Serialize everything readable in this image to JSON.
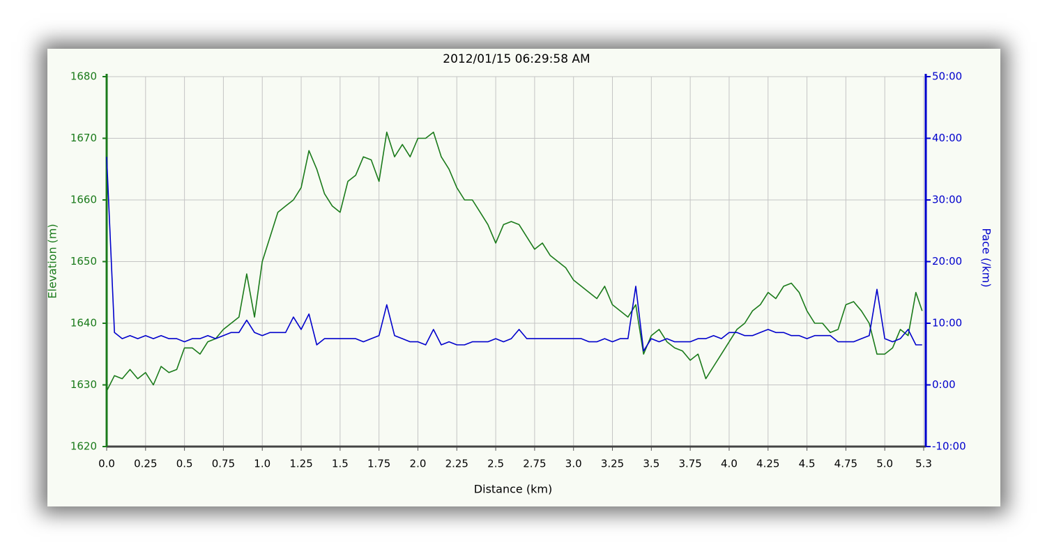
{
  "chart_data": {
    "type": "line",
    "title": "2012/01/15 06:29:58 AM",
    "x_label": "Distance (km)",
    "y_label": "Elevation (m)",
    "y2_label": "Pace (/km)",
    "grid": true,
    "x": [
      0,
      0.05,
      0.1,
      0.15,
      0.2,
      0.25,
      0.3,
      0.35,
      0.4,
      0.45,
      0.5,
      0.55,
      0.6,
      0.65,
      0.7,
      0.75,
      0.8,
      0.85,
      0.9,
      0.95,
      1.0,
      1.05,
      1.1,
      1.15,
      1.2,
      1.25,
      1.3,
      1.35,
      1.4,
      1.45,
      1.5,
      1.55,
      1.6,
      1.65,
      1.7,
      1.75,
      1.8,
      1.85,
      1.9,
      1.95,
      2.0,
      2.05,
      2.1,
      2.15,
      2.2,
      2.25,
      2.3,
      2.35,
      2.4,
      2.45,
      2.5,
      2.55,
      2.6,
      2.65,
      2.7,
      2.75,
      2.8,
      2.85,
      2.9,
      2.95,
      3.0,
      3.05,
      3.1,
      3.15,
      3.2,
      3.25,
      3.3,
      3.35,
      3.4,
      3.45,
      3.5,
      3.55,
      3.6,
      3.65,
      3.7,
      3.75,
      3.8,
      3.85,
      3.9,
      3.95,
      4.0,
      4.05,
      4.1,
      4.15,
      4.2,
      4.25,
      4.3,
      4.35,
      4.4,
      4.45,
      4.5,
      4.55,
      4.6,
      4.65,
      4.7,
      4.75,
      4.8,
      4.85,
      4.9,
      4.95,
      5.0,
      5.05,
      5.1,
      5.15,
      5.2,
      5.24
    ],
    "series": [
      {
        "name": "Elevation",
        "color": "#1a7a1a",
        "axis": "y",
        "values": [
          1629,
          1631.5,
          1631,
          1632.5,
          1631,
          1632,
          1630,
          1633,
          1632,
          1632.5,
          1636,
          1636,
          1635,
          1637,
          1637.5,
          1639,
          1640,
          1641,
          1648,
          1641,
          1650,
          1654,
          1658,
          1659,
          1660,
          1662,
          1668,
          1665,
          1661,
          1659,
          1658,
          1663,
          1664,
          1667,
          1666.5,
          1663,
          1671,
          1667,
          1669,
          1667,
          1670,
          1670,
          1671,
          1667,
          1665,
          1662,
          1660,
          1660,
          1658,
          1656,
          1653,
          1656,
          1656.5,
          1656,
          1654,
          1652,
          1653,
          1651,
          1650,
          1649,
          1647,
          1646,
          1645,
          1644,
          1646,
          1643,
          1642,
          1641,
          1643,
          1635,
          1638,
          1639,
          1637,
          1636,
          1635.5,
          1634,
          1635,
          1631,
          1633,
          1635,
          1637,
          1639,
          1640,
          1642,
          1643,
          1645,
          1644,
          1646,
          1646.5,
          1645,
          1642,
          1640,
          1640,
          1638.5,
          1639,
          1643,
          1643.5,
          1642,
          1640,
          1635,
          1635,
          1636,
          1639,
          1638,
          1645,
          1642
        ]
      },
      {
        "name": "Pace",
        "color": "#0000cc",
        "axis": "y2",
        "values": [
          37,
          8.5,
          7.5,
          8,
          7.5,
          8,
          7.5,
          8,
          7.5,
          7.5,
          7,
          7.5,
          7.5,
          8,
          7.5,
          8,
          8.5,
          8.5,
          10.5,
          8.5,
          8,
          8.5,
          8.5,
          8.5,
          11,
          9,
          11.5,
          6.5,
          7.5,
          7.5,
          7.5,
          7.5,
          7.5,
          7,
          7.5,
          8,
          13,
          8,
          7.5,
          7,
          7,
          6.5,
          9,
          6.5,
          7,
          6.5,
          6.5,
          7,
          7,
          7,
          7.5,
          7,
          7.5,
          9,
          7.5,
          7.5,
          7.5,
          7.5,
          7.5,
          7.5,
          7.5,
          7.5,
          7,
          7,
          7.5,
          7,
          7.5,
          7.5,
          16,
          5.5,
          7.5,
          7,
          7.5,
          7,
          7,
          7,
          7.5,
          7.5,
          8,
          7.5,
          8.5,
          8.5,
          8,
          8,
          8.5,
          9,
          8.5,
          8.5,
          8,
          8,
          7.5,
          8,
          8,
          8,
          7,
          7,
          7,
          7.5,
          8,
          15.5,
          7.5,
          7,
          7.5,
          9,
          6.5,
          6.5
        ]
      }
    ],
    "xlim": [
      0,
      5.25
    ],
    "xticks": [
      {
        "value": 0,
        "label": "0.0"
      },
      0.25,
      0.5,
      0.75,
      {
        "value": 1,
        "label": "1.0"
      },
      1.25,
      1.5,
      1.75,
      {
        "value": 2,
        "label": "2.0"
      },
      2.25,
      2.5,
      2.75,
      {
        "value": 3,
        "label": "3.0"
      },
      3.25,
      3.5,
      3.75,
      {
        "value": 4,
        "label": "4.0"
      },
      4.25,
      4.5,
      4.75,
      {
        "value": 5,
        "label": "5.0"
      },
      {
        "value": 5.25,
        "label": "5.3"
      }
    ],
    "ylim": [
      1620,
      1680
    ],
    "yticks": [
      1620,
      1630,
      1640,
      1650,
      1660,
      1670,
      1680
    ],
    "y2lim": [
      -10,
      50
    ],
    "y2ticks": [
      {
        "value": -10,
        "label": "-10:00"
      },
      {
        "value": 0,
        "label": "0:00"
      },
      {
        "value": 10,
        "label": "10:00"
      },
      {
        "value": 20,
        "label": "20:00"
      },
      {
        "value": 30,
        "label": "30:00"
      },
      {
        "value": 40,
        "label": "40:00"
      },
      {
        "value": 50,
        "label": "50:00"
      }
    ]
  }
}
